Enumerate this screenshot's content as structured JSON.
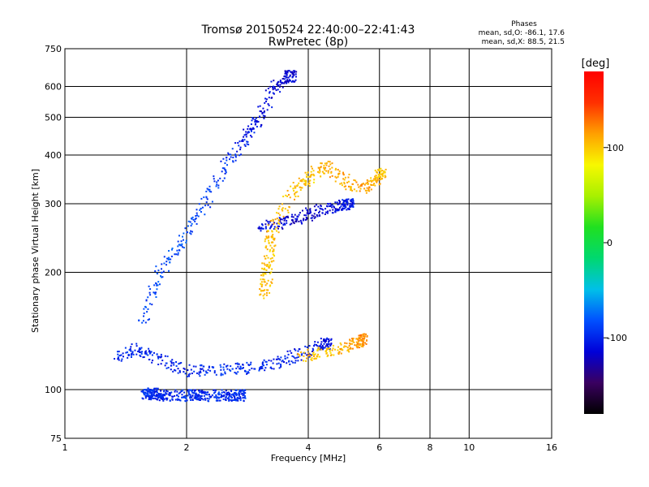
{
  "chart_data": {
    "type": "scatter",
    "title": "Tromsø 20150524 22:40:00–22:41:43",
    "subtitle": "RwPretec (8p)",
    "xlabel": "Frequency [MHz]",
    "ylabel": "Stationary phase Virtual Height [km]",
    "xscale": "log",
    "yscale": "log",
    "xlim": [
      1,
      16
    ],
    "ylim": [
      75,
      750
    ],
    "x_ticks": [
      1,
      2,
      4,
      6,
      8,
      10,
      16
    ],
    "y_ticks": [
      75,
      100,
      200,
      300,
      400,
      500,
      600,
      750
    ],
    "grid": true,
    "stats": {
      "heading": "Phases",
      "line_o": "mean, sd,O:  -86.1, 17.6",
      "line_x": "mean, sd,X:   88.5, 21.5"
    },
    "colorbar": {
      "label": "[deg]",
      "range": [
        -180,
        180
      ],
      "ticks": [
        100,
        0,
        -100
      ],
      "colors": [
        "#000000",
        "#3a0060",
        "#0000d8",
        "#0050ff",
        "#00c0e8",
        "#00d870",
        "#20e020",
        "#a8f000",
        "#f8f800",
        "#ffa000",
        "#ff3000",
        "#ff0000"
      ]
    },
    "traces": [
      {
        "name_hint": "E-layer O",
        "points": [
          [
            1.58,
            98,
            -100
          ],
          [
            1.6,
            98,
            -95
          ],
          [
            1.65,
            98,
            -100
          ],
          [
            1.7,
            97,
            -98
          ],
          [
            1.8,
            97,
            -100
          ],
          [
            2.0,
            97,
            -95
          ],
          [
            2.1,
            97,
            -95
          ],
          [
            2.2,
            97,
            -100
          ],
          [
            2.4,
            97,
            -95
          ],
          [
            2.55,
            97,
            -98
          ],
          [
            2.7,
            97,
            -95
          ]
        ]
      },
      {
        "name_hint": "F1 O",
        "points": [
          [
            1.35,
            122,
            -95
          ],
          [
            1.5,
            128,
            -100
          ],
          [
            1.7,
            120,
            -100
          ],
          [
            2.0,
            112,
            -100
          ],
          [
            2.4,
            113,
            -95
          ],
          [
            2.8,
            114,
            -95
          ],
          [
            3.3,
            117,
            -100
          ],
          [
            3.8,
            124,
            -105
          ],
          [
            4.4,
            132,
            -110
          ]
        ]
      },
      {
        "name_hint": "F1 X",
        "points": [
          [
            3.8,
            122,
            105
          ],
          [
            4.4,
            126,
            100
          ],
          [
            5.0,
            130,
            110
          ],
          [
            5.4,
            135,
            120
          ]
        ]
      },
      {
        "name_hint": "F2 O",
        "points": [
          [
            1.55,
            150,
            -90
          ],
          [
            1.7,
            200,
            -85
          ],
          [
            1.95,
            240,
            -85
          ],
          [
            2.2,
            300,
            -90
          ],
          [
            2.5,
            380,
            -95
          ],
          [
            2.8,
            450,
            -105
          ],
          [
            3.0,
            500,
            -110
          ],
          [
            3.3,
            600,
            -115
          ],
          [
            3.6,
            640,
            -115
          ]
        ]
      },
      {
        "name_hint": "F2 trace",
        "points": [
          [
            3.0,
            262,
            -110
          ],
          [
            3.4,
            268,
            -115
          ],
          [
            3.8,
            278,
            -120
          ],
          [
            4.2,
            288,
            -115
          ],
          [
            4.7,
            296,
            -110
          ],
          [
            5.0,
            300,
            -105
          ]
        ]
      },
      {
        "name_hint": "X patch",
        "points": [
          [
            3.1,
            175,
            105
          ],
          [
            3.15,
            200,
            100
          ],
          [
            3.2,
            230,
            100
          ],
          [
            3.25,
            260,
            105
          ],
          [
            3.7,
            330,
            105
          ],
          [
            4.0,
            350,
            100
          ],
          [
            4.4,
            380,
            110
          ],
          [
            5.0,
            340,
            110
          ],
          [
            5.6,
            330,
            115
          ],
          [
            6.0,
            360,
            100
          ]
        ]
      }
    ]
  }
}
